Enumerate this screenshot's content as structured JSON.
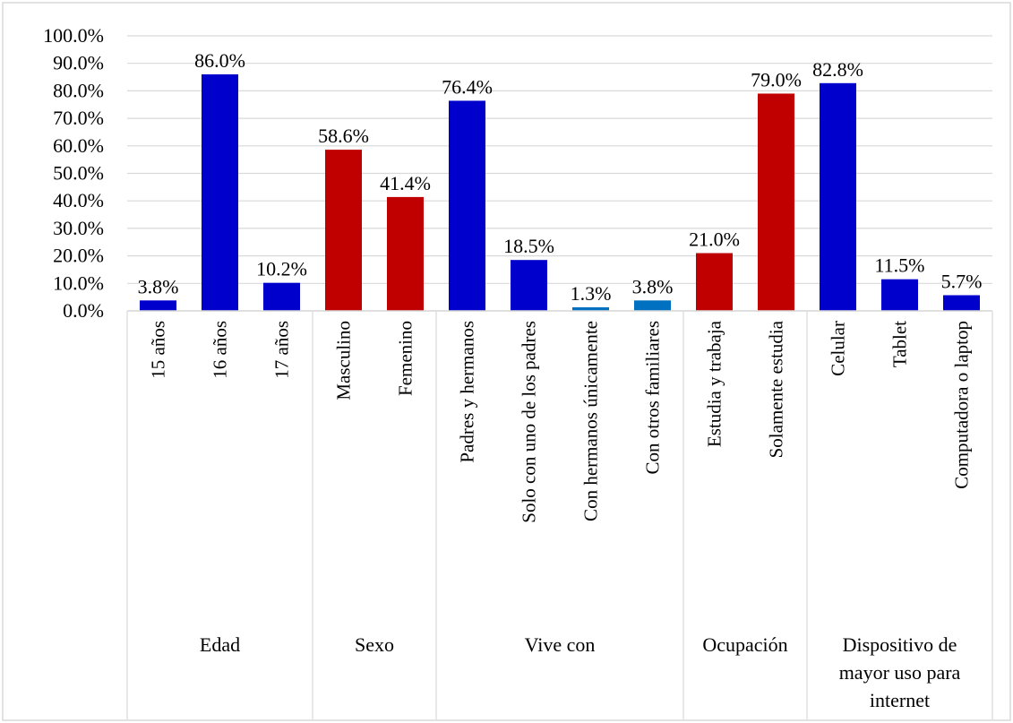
{
  "chart_data": {
    "type": "bar",
    "title": "",
    "xlabel": "",
    "ylabel": "",
    "ylim": [
      0,
      100
    ],
    "y_ticks": [
      "0.0%",
      "10.0%",
      "20.0%",
      "30.0%",
      "40.0%",
      "50.0%",
      "60.0%",
      "70.0%",
      "80.0%",
      "90.0%",
      "100.0%"
    ],
    "grid": "horizontal",
    "legend": "none",
    "categories": [
      "15 años",
      "16 años",
      "17 años",
      "Masculino",
      "Femenino",
      "Padres y hermanos",
      "Solo con uno de los padres",
      "Con hermanos únicamente",
      "Con otros familiares",
      "Estudia y trabaja",
      "Solamente estudia",
      "Celular",
      "Tablet",
      "Computadora o laptop"
    ],
    "values": [
      3.8,
      86.0,
      10.2,
      58.6,
      41.4,
      76.4,
      18.5,
      1.3,
      3.8,
      21.0,
      79.0,
      82.8,
      11.5,
      5.7
    ],
    "value_labels": [
      "3.8%",
      "86.0%",
      "10.2%",
      "58.6%",
      "41.4%",
      "76.4%",
      "18.5%",
      "1.3%",
      "3.8%",
      "21.0%",
      "79.0%",
      "82.8%",
      "11.5%",
      "5.7%"
    ],
    "bar_colors": [
      "#0000CC",
      "#0000CC",
      "#0000CC",
      "#C00000",
      "#C00000",
      "#0000CC",
      "#0000CC",
      "#0070C0",
      "#0070C0",
      "#C00000",
      "#C00000",
      "#0000CC",
      "#0000CC",
      "#0000CC"
    ],
    "groups": [
      {
        "label": "Edad",
        "count": 3
      },
      {
        "label": "Sexo",
        "count": 2
      },
      {
        "label": "Vive con",
        "count": 4
      },
      {
        "label": "Ocupación",
        "count": 2
      },
      {
        "label": "Dispositivo de mayor uso para internet",
        "count": 3
      }
    ]
  },
  "colors": {
    "gridline": "#D9D9D9",
    "frame": "#D9D9D9",
    "text": "#000000"
  }
}
